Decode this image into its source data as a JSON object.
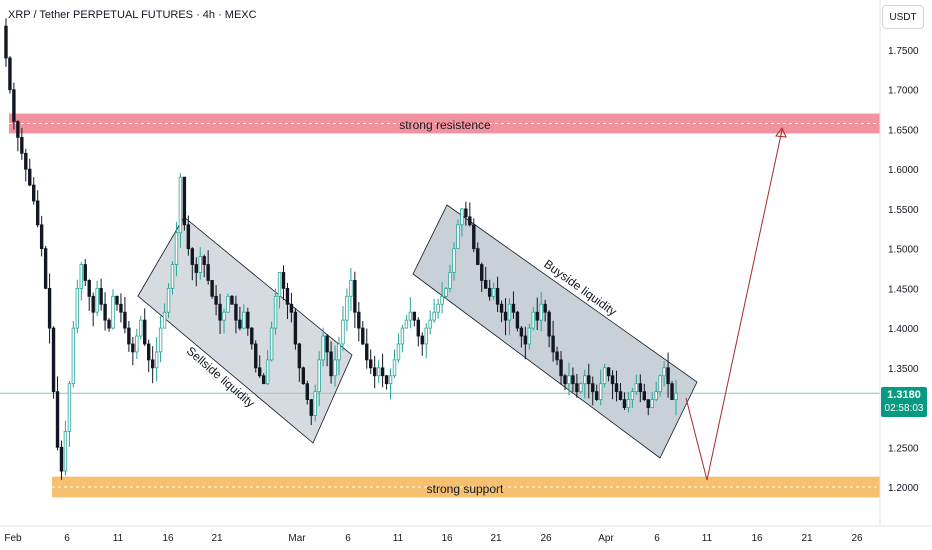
{
  "header": {
    "title": "XRP / Tether PERPETUAL FUTURES · 4h · MEXC",
    "currency": "USDT"
  },
  "last_price": {
    "value": "1.3180",
    "countdown": "02:58:03"
  },
  "colors": {
    "up": "#26a69a",
    "up_fill": "#ffffff",
    "down": "#131722",
    "resistance_zone": "#ef8793",
    "support_zone": "#f5b95f",
    "channel_fill": "#b2bec8",
    "projection_line": "#a52a2a",
    "price_line": "#089981"
  },
  "chart_data": {
    "type": "candlestick",
    "y_axis": {
      "ticks": [
        "1.7500",
        "1.7000",
        "1.6500",
        "1.6000",
        "1.5500",
        "1.5000",
        "1.4500",
        "1.4000",
        "1.3500",
        "1.2500",
        "1.2000"
      ],
      "range": [
        1.17,
        1.8
      ]
    },
    "x_axis": {
      "ticks": [
        "Feb",
        "6",
        "11",
        "16",
        "21",
        "Mar",
        "6",
        "11",
        "16",
        "21",
        "26",
        "Apr",
        "6",
        "11",
        "16",
        "21",
        "26"
      ]
    },
    "current_price": 1.318,
    "zones": [
      {
        "label": "strong resistence",
        "from": 1.645,
        "to": 1.67
      },
      {
        "label": "strong support",
        "from": 1.187,
        "to": 1.213
      }
    ],
    "annotations": [
      {
        "label": "Sellside liquidity",
        "channel": "descending"
      },
      {
        "label": "Buyside liquidity",
        "channel": "descending"
      }
    ],
    "projection": {
      "points": [
        1.31,
        1.21,
        1.655
      ]
    },
    "price_path": [
      1.78,
      1.74,
      1.7,
      1.66,
      1.64,
      1.62,
      1.6,
      1.58,
      1.56,
      1.53,
      1.5,
      1.45,
      1.4,
      1.32,
      1.25,
      1.22,
      1.27,
      1.33,
      1.4,
      1.45,
      1.48,
      1.46,
      1.44,
      1.42,
      1.45,
      1.43,
      1.41,
      1.4,
      1.44,
      1.43,
      1.42,
      1.4,
      1.38,
      1.37,
      1.39,
      1.41,
      1.38,
      1.36,
      1.35,
      1.37,
      1.4,
      1.42,
      1.45,
      1.48,
      1.52,
      1.59,
      1.53,
      1.5,
      1.48,
      1.47,
      1.49,
      1.48,
      1.46,
      1.44,
      1.43,
      1.41,
      1.42,
      1.44,
      1.43,
      1.41,
      1.4,
      1.42,
      1.4,
      1.38,
      1.35,
      1.34,
      1.33,
      1.36,
      1.4,
      1.44,
      1.47,
      1.45,
      1.43,
      1.42,
      1.38,
      1.35,
      1.33,
      1.31,
      1.29,
      1.32,
      1.36,
      1.39,
      1.37,
      1.34,
      1.36,
      1.38,
      1.41,
      1.44,
      1.46,
      1.42,
      1.4,
      1.38,
      1.36,
      1.35,
      1.34,
      1.35,
      1.34,
      1.33,
      1.34,
      1.36,
      1.38,
      1.4,
      1.41,
      1.42,
      1.41,
      1.39,
      1.38,
      1.4,
      1.41,
      1.42,
      1.43,
      1.44,
      1.45,
      1.47,
      1.5,
      1.53,
      1.55,
      1.54,
      1.53,
      1.5,
      1.48,
      1.46,
      1.45,
      1.44,
      1.45,
      1.43,
      1.42,
      1.41,
      1.43,
      1.42,
      1.4,
      1.39,
      1.38,
      1.4,
      1.42,
      1.41,
      1.43,
      1.42,
      1.39,
      1.37,
      1.36,
      1.34,
      1.33,
      1.34,
      1.33,
      1.32,
      1.33,
      1.34,
      1.33,
      1.32,
      1.31,
      1.33,
      1.35,
      1.34,
      1.33,
      1.32,
      1.31,
      1.3,
      1.31,
      1.32,
      1.33,
      1.32,
      1.31,
      1.3,
      1.31,
      1.32,
      1.34,
      1.35,
      1.33,
      1.31,
      1.318
    ]
  }
}
